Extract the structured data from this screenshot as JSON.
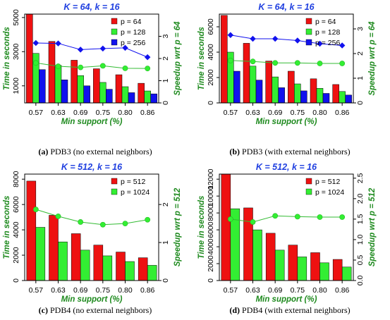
{
  "colors": {
    "p1": "#ee1111",
    "p2": "#33ee33",
    "p3": "#1111ee",
    "speedup_line": "#33bb33",
    "title": "#1f3fe0",
    "axis_label": "#1e8a1e"
  },
  "chart_data": [
    {
      "type": "bar",
      "title": "K = 64, k = 16",
      "xlabel": "Min support (%)",
      "ylabel": "Time in seconds",
      "y2label": "Speedup wrt p = 64",
      "caption_tag": "(a)",
      "caption_text": "PDB3 (no external neighbors)",
      "categories": [
        "0.57",
        "0.63",
        "0.69",
        "0.75",
        "0.80",
        "0.86"
      ],
      "ylim": [
        0,
        5200
      ],
      "yticks": [
        1000,
        3000,
        5000
      ],
      "y2lim": [
        0,
        4.0
      ],
      "y2ticks": [
        0,
        1,
        2,
        3
      ],
      "series": [
        {
          "name": "p = 64",
          "values": [
            5300,
            3600,
            2500,
            2000,
            1650,
            1150
          ]
        },
        {
          "name": "p = 128",
          "values": [
            2900,
            2200,
            1600,
            1200,
            950,
            700
          ]
        },
        {
          "name": "p = 256",
          "values": [
            1950,
            1350,
            1000,
            800,
            600,
            530
          ]
        }
      ],
      "speedup": {
        "p = 128": [
          1.8,
          1.65,
          1.6,
          1.67,
          1.56,
          1.55
        ],
        "p = 256": [
          2.7,
          2.68,
          2.4,
          2.45,
          2.48,
          2.06
        ]
      },
      "legend": "top-right",
      "grid": false
    },
    {
      "type": "bar",
      "title": "K = 64, k = 16",
      "xlabel": "Min support (%)",
      "ylabel": "Time in seconds",
      "y2label": "Speedup wrt p = 64",
      "caption_tag": "(b)",
      "caption_text": "PDB3 (with external neighbors)",
      "categories": [
        "0.57",
        "0.63",
        "0.69",
        "0.75",
        "0.80",
        "0.86"
      ],
      "ylim": [
        0,
        7000
      ],
      "yticks": [
        0,
        2000,
        4000,
        6000
      ],
      "y2lim": [
        0,
        3.6
      ],
      "y2ticks": [
        0,
        1,
        2,
        3
      ],
      "series": [
        {
          "name": "p = 64",
          "values": [
            6900,
            4700,
            3300,
            2500,
            1900,
            1450
          ]
        },
        {
          "name": "p = 128",
          "values": [
            4000,
            2900,
            2050,
            1500,
            1150,
            900
          ]
        },
        {
          "name": "p = 256",
          "values": [
            2500,
            1800,
            1200,
            950,
            750,
            620
          ]
        }
      ],
      "speedup": {
        "p = 128": [
          1.72,
          1.68,
          1.62,
          1.62,
          1.6,
          1.6
        ],
        "p = 256": [
          2.75,
          2.6,
          2.6,
          2.53,
          2.4,
          2.33
        ]
      },
      "legend": "top-right",
      "grid": false
    },
    {
      "type": "bar",
      "title": "K = 512, k = 16",
      "xlabel": "Min support (%)",
      "ylabel": "Time in seconds",
      "y2label": "Speedup wrt p = 512",
      "caption_tag": "(c)",
      "caption_text": "PDB4 (no external neighbors)",
      "categories": [
        "0.57",
        "0.63",
        "0.69",
        "0.75",
        "0.80",
        "0.86"
      ],
      "ylim": [
        0,
        8400
      ],
      "yticks": [
        0,
        2000,
        4000,
        6000,
        8000
      ],
      "y2lim": [
        0,
        2.8
      ],
      "y2ticks": [
        0.0,
        1.0,
        2.0
      ],
      "series": [
        {
          "name": "p = 512",
          "values": [
            7850,
            5150,
            3700,
            2800,
            2250,
            1800
          ]
        },
        {
          "name": "p = 1024",
          "values": [
            4200,
            3050,
            2400,
            1950,
            1500,
            1200
          ]
        }
      ],
      "speedup": {
        "p = 1024": [
          1.87,
          1.69,
          1.54,
          1.47,
          1.5,
          1.6
        ]
      },
      "legend": "top-right",
      "grid": false
    },
    {
      "type": "bar",
      "title": "K = 512, k = 16",
      "xlabel": "Min support (%)",
      "ylabel": "Time in seconds",
      "y2label": "Speedup wrt p = 512",
      "caption_tag": "(d)",
      "caption_text": "PDB4 (with external neighbors)",
      "categories": [
        "0.57",
        "0.63",
        "0.69",
        "0.75",
        "0.80",
        "0.86"
      ],
      "ylim": [
        0,
        12600
      ],
      "yticks": [
        0,
        2000,
        4000,
        6000,
        8000,
        10000,
        12000
      ],
      "y2lim": [
        0,
        2.6
      ],
      "y2ticks": [
        0.0,
        0.5,
        1.0,
        1.5,
        2.0,
        2.5
      ],
      "series": [
        {
          "name": "p = 512",
          "values": [
            12600,
            8600,
            5600,
            4200,
            3300,
            2500
          ]
        },
        {
          "name": "p = 1024",
          "values": [
            8500,
            6000,
            3600,
            2800,
            2100,
            1600
          ]
        }
      ],
      "speedup": {
        "p = 1024": [
          1.5,
          1.43,
          1.58,
          1.56,
          1.55,
          1.55
        ]
      },
      "legend": "top-right",
      "grid": false
    }
  ]
}
